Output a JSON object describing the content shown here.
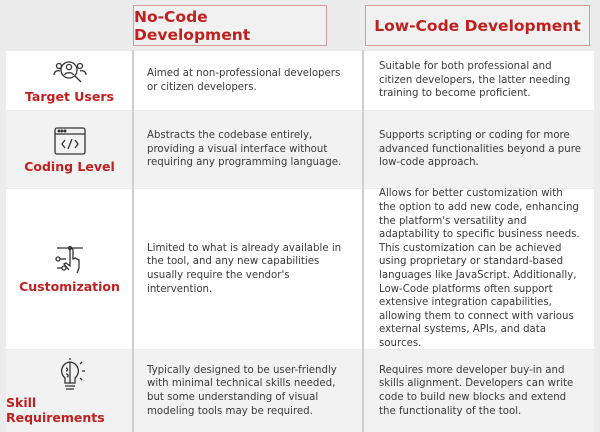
{
  "header": {
    "col1": "No-Code Development",
    "col2": "Low-Code Development"
  },
  "rows": [
    {
      "label": "Target Users",
      "icon": "users-search-icon",
      "nocode": "Aimed at non-professional developers or citizen developers.",
      "lowcode": "Suitable for both professional and citizen developers, the latter needing training to become proficient."
    },
    {
      "label": "Coding Level",
      "icon": "code-window-icon",
      "nocode": "Abstracts the codebase entirely, providing a visual interface without requiring any programming language.",
      "lowcode": "Supports scripting or coding for more advanced functionalities beyond a pure low-code approach."
    },
    {
      "label": "Customization",
      "icon": "hand-slider-icon",
      "nocode": "Limited to what is already available in the tool, and any new capabilities usually require the vendor's intervention.",
      "lowcode": "Allows for better customization with the option to add new code, enhancing the platform's versatility and adaptability to specific business needs. This customization can be achieved using proprietary or standard-based languages like JavaScript. Additionally, Low-Code platforms often support extensive integration capabilities, allowing them to connect with various external systems, APIs, and data sources."
    },
    {
      "label": "Skill Requirements",
      "icon": "brain-bulb-icon",
      "nocode": "Typically designed to be user-friendly with minimal technical skills needed, but some understanding of visual modeling tools may be required.",
      "lowcode": "Requires more developer buy-in and skills alignment. Developers can write code to build new blocks and extend the functionality of the tool."
    }
  ],
  "colors": {
    "accent": "#c0201f"
  }
}
